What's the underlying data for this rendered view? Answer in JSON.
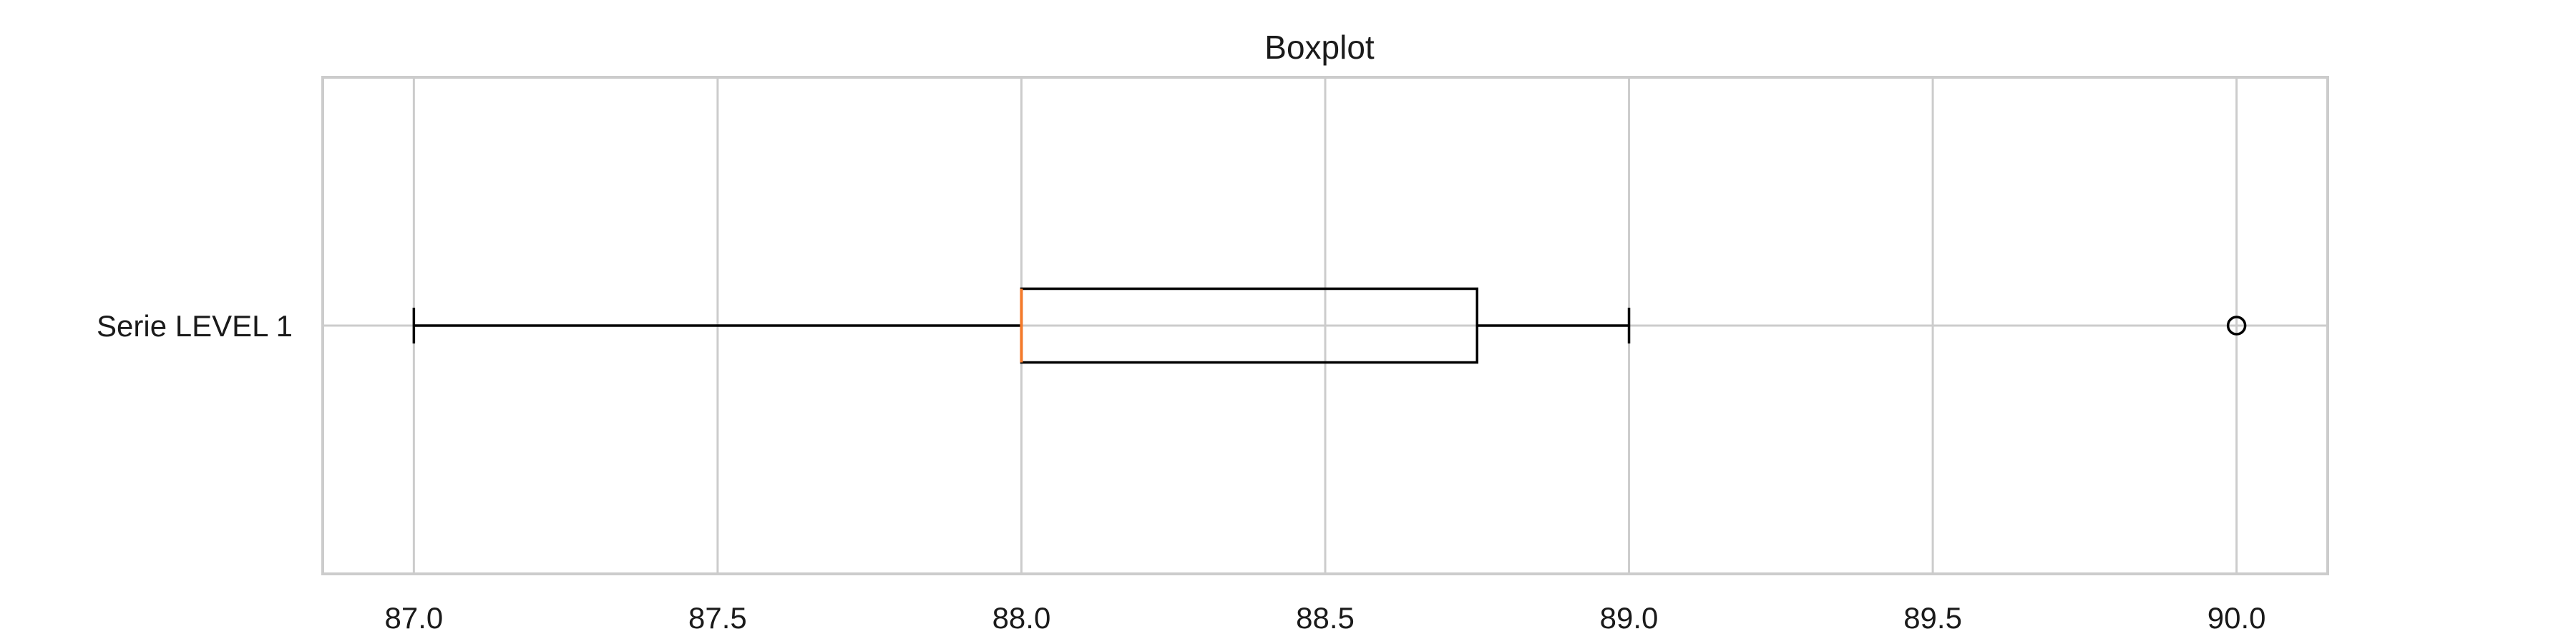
{
  "chart_data": {
    "type": "boxplot",
    "orientation": "horizontal",
    "title": "Boxplot",
    "xlabel": "",
    "ylabel": "",
    "xlim": [
      86.85,
      90.15
    ],
    "x_ticks": [
      87.0,
      87.5,
      88.0,
      88.5,
      89.0,
      89.5,
      90.0
    ],
    "x_tick_labels": [
      "87.0",
      "87.5",
      "88.0",
      "88.5",
      "89.0",
      "89.5",
      "90.0"
    ],
    "grid": true,
    "series": [
      {
        "name": "Serie LEVEL 1",
        "whisker_low": 87.0,
        "q1": 88.0,
        "median": 88.0,
        "q3": 88.75,
        "whisker_high": 89.0,
        "outliers": [
          90.0
        ]
      }
    ],
    "colors": {
      "box": "#000000",
      "median": "#f47a2a",
      "grid": "#cccccc",
      "frame": "#cccccc",
      "text": "#1a1a1a"
    }
  }
}
